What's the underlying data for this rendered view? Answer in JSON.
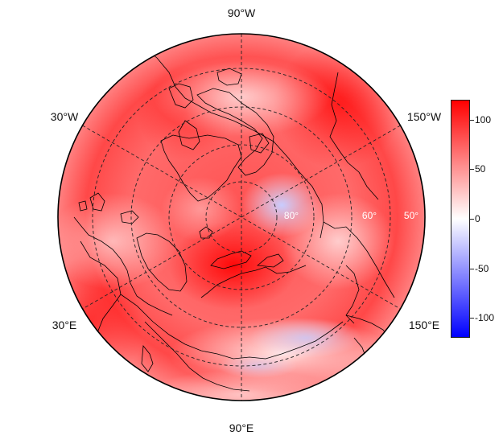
{
  "map": {
    "projection": "north-polar-stereographic",
    "longitude_labels": {
      "top": "90°W",
      "upper_left": "30°W",
      "upper_right": "150°W",
      "lower_left": "30°E",
      "lower_right": "150°E",
      "bottom": "90°E"
    },
    "latitude_labels": {
      "inner": "80°",
      "middle": "60°",
      "outer": "50°"
    },
    "graticule": "dashed",
    "field": "diverging red-white-blue anomaly, mostly positive (red) with negative (blue) patches north of Siberia and over central Asia"
  },
  "colorbar": {
    "ticks": [
      "100",
      "50",
      "0",
      "-50",
      "-100"
    ],
    "range": [
      -120,
      120
    ],
    "colors": {
      "low": "#0000ff",
      "mid": "#ffffff",
      "high": "#ff0000"
    }
  }
}
